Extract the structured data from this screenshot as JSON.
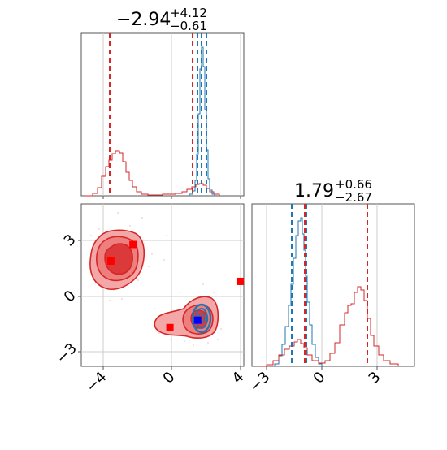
{
  "chart_data": {
    "type": "scatter",
    "panels": {
      "x_marginal": {
        "type": "histogram",
        "title_main": "−2.94",
        "title_sup": "+4.12",
        "title_sub": "−0.61",
        "xlim": [
          -4.6,
          4.2
        ],
        "red_quantile_lines": [
          -3.65,
          1.15
        ],
        "blue_quantile_lines": [
          1.55,
          1.75,
          1.95
        ]
      },
      "y_marginal": {
        "type": "histogram",
        "title_main": "1.79",
        "title_sup": "+0.66",
        "title_sub": "−2.67",
        "xlim": [
          -3.8,
          5.0
        ],
        "red_quantile_lines": [
          -1.3,
          -1.25,
          2.5
        ],
        "blue_quantile_lines": [
          -1.85,
          -1.25
        ]
      },
      "joint": {
        "type": "contour",
        "xlim": [
          -4.6,
          4.2
        ],
        "ylim": [
          -3.7,
          5.1
        ],
        "red_markers": [
          [
            -3.0,
            2.0
          ],
          [
            -1.8,
            2.9
          ],
          [
            0.2,
            -1.6
          ],
          [
            4.0,
            0.9
          ]
        ],
        "blue_marker": [
          1.7,
          -1.2
        ]
      }
    },
    "ticks": {
      "joint_x": [
        "−4",
        "0",
        "4"
      ],
      "joint_y": [
        "−3",
        "0",
        "3"
      ],
      "ymarg_x": [
        "−3",
        "0",
        "3"
      ]
    },
    "colors": {
      "red": "#d62728",
      "red_fill": "#f08080",
      "blue": "#1f77b4",
      "marker_red": "#ff0000",
      "marker_blue": "#0000ff",
      "grid": "#cccccc",
      "axes": "#555555"
    }
  }
}
